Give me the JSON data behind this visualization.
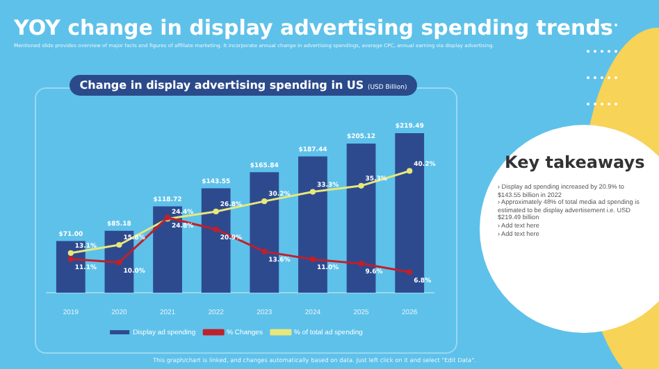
{
  "chart_data": [
    {
      "type": "bar",
      "title": "Change in display advertising spending in US",
      "subtitle": "(USD Billion)",
      "categories": [
        "2019",
        "2020",
        "2021",
        "2022",
        "2023",
        "2024",
        "2025",
        "2026"
      ],
      "series": [
        {
          "name": "Display ad spending",
          "type": "bar",
          "color": "#2e4a8f",
          "values": [
            71.0,
            85.18,
            118.72,
            143.55,
            165.84,
            187.44,
            205.12,
            219.49
          ],
          "value_labels": [
            "$71.00",
            "$85.18",
            "$118.72",
            "$143.55",
            "$165.84",
            "$187.44",
            "$205.12",
            "$219.49"
          ]
        },
        {
          "name": "% Changes",
          "type": "line",
          "axis": "y2",
          "color": "#c0202a",
          "values": [
            11.1,
            10.0,
            24.8,
            20.9,
            13.6,
            11.0,
            9.6,
            6.8
          ],
          "value_labels": [
            "11.1%",
            "10.0%",
            "24.8%",
            "20.9%",
            "13.6%",
            "11.0%",
            "9.6%",
            "6.8%"
          ]
        },
        {
          "name": "% of total ad spending",
          "type": "line",
          "axis": "y2",
          "color": "#e8e87a",
          "values": [
            13.1,
            15.8,
            24.4,
            26.8,
            30.2,
            33.3,
            35.3,
            40.2
          ],
          "value_labels": [
            "13.1%",
            "15.8%",
            "24.4%",
            "26.8%",
            "30.2%",
            "33.3%",
            "35.3%",
            "40.2%"
          ]
        }
      ],
      "tick_labels": "x",
      "grid": false,
      "legend": "bottom",
      "marker": "circle",
      "annotations": [
        "YOY change in display advertising spending trends",
        "Mentioned slide provides overview of major facts and figures of affiliate marketing. It incorporate annual change in advertising spendings, average CPC, annual earning via display advertising.",
        "This graph/chart is linked, and changes automatically based on data. Just left click on it and select \"Edit Data\"."
      ]
    },
    {
      "type": "other",
      "title": "Key takeaways",
      "annotations": [
        "› Display ad spending increased by 20.9% to $143.55 billion in 2022",
        "› Approximately 48% of total media ad spending is estimated to be display advertisement i.e. USD $219.49 billion",
        "› Add text here",
        "› Add text here"
      ]
    }
  ]
}
